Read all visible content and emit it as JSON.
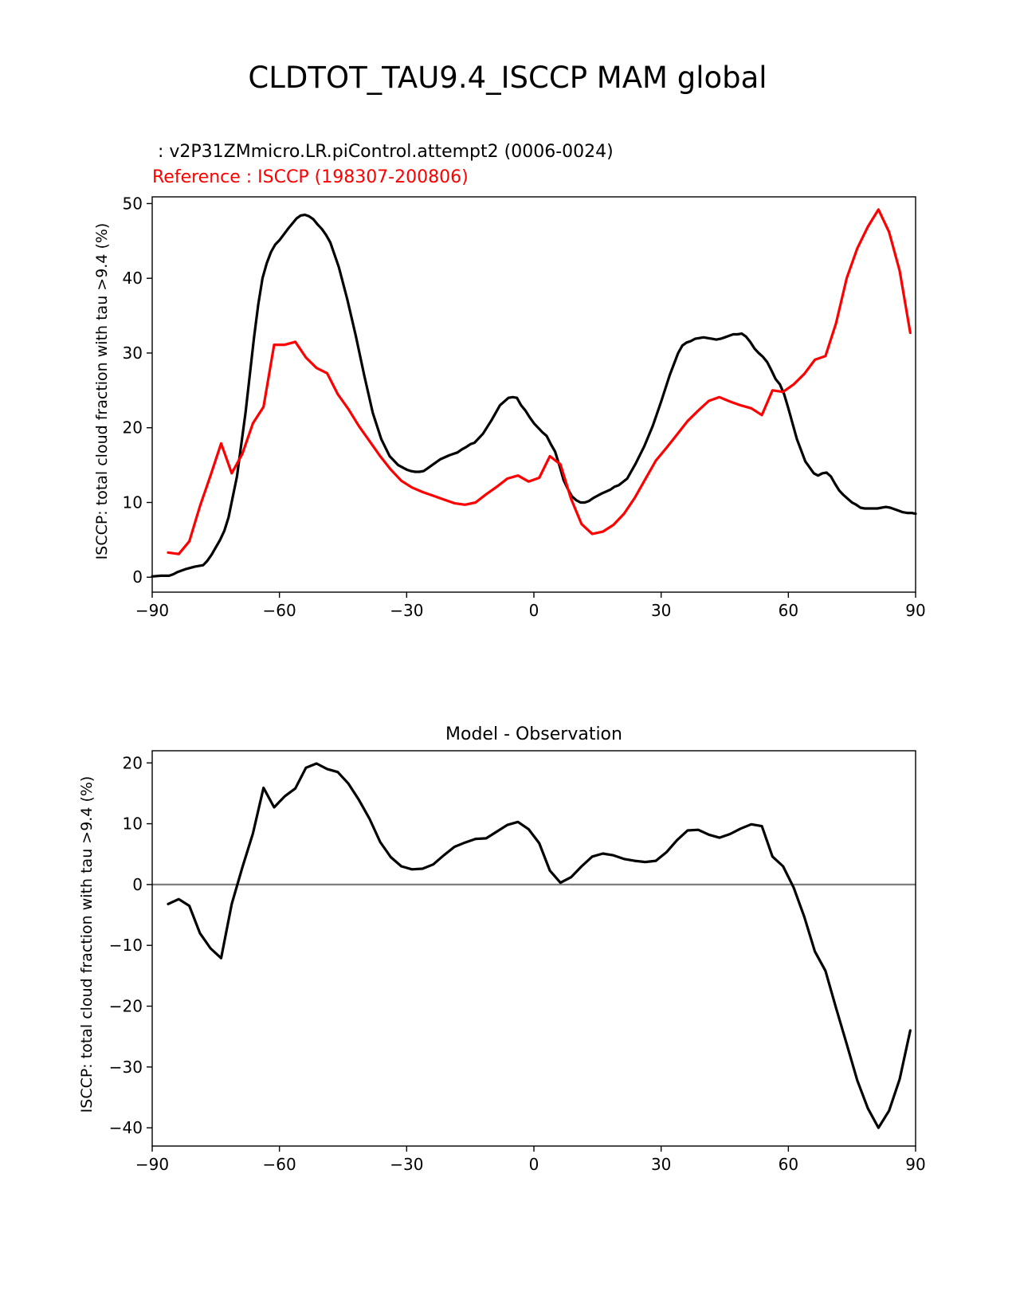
{
  "figure": {
    "title": "CLDTOT_TAU9.4_ISCCP MAM global"
  },
  "chart_data": [
    {
      "type": "line",
      "test_label": " : v2P31ZMmicro.LR.piControl.attempt2 (0006-0024)",
      "reference_label": "Reference : ISCCP (198307-200806)",
      "ylabel": "ISCCP: total cloud fraction with tau >9.4 (%)",
      "xlim": [
        -90,
        90
      ],
      "ylim": [
        -2,
        50.9
      ],
      "xticks": [
        -90,
        -60,
        -30,
        0,
        30,
        60,
        90
      ],
      "xtick_labels": [
        "−90",
        "−60",
        "−30",
        "0",
        "30",
        "60",
        "90"
      ],
      "yticks": [
        0,
        10,
        20,
        30,
        40,
        50
      ],
      "ytick_labels": [
        "0",
        "10",
        "20",
        "30",
        "40",
        "50"
      ],
      "series": [
        {
          "name": "v2P31ZMmicro.LR.piControl.attempt2 (0006-0024)",
          "color": "#000000",
          "x": [
            -90,
            -88,
            -86,
            -85,
            -84,
            -82,
            -80,
            -78,
            -77,
            -76,
            -74,
            -73,
            -72,
            -70,
            -68,
            -66,
            -65,
            -64,
            -63,
            -62,
            -61,
            -60,
            -58,
            -56,
            -55,
            -54,
            -53,
            -52,
            -51,
            -50,
            -49,
            -48,
            -46,
            -44,
            -42,
            -40,
            -38,
            -36,
            -34,
            -32,
            -30,
            -29,
            -28,
            -27,
            -26,
            -25,
            -24,
            -22,
            -20,
            -19,
            -18,
            -17,
            -16,
            -15,
            -14,
            -12,
            -10,
            -8,
            -6,
            -5,
            -4,
            -3,
            -2,
            -1,
            0,
            1,
            2,
            3,
            4,
            5,
            6,
            7,
            8,
            9,
            10,
            11,
            12,
            13,
            14,
            16,
            18,
            19,
            20,
            22,
            24,
            26,
            28,
            30,
            32,
            34,
            35,
            36,
            37,
            38,
            39,
            40,
            41,
            42,
            43,
            44,
            45,
            46,
            47,
            48,
            49,
            50,
            51,
            52,
            53,
            54,
            55,
            56,
            57,
            58,
            59,
            60,
            62,
            64,
            66,
            67,
            68,
            69,
            70,
            71,
            72,
            73,
            74,
            75,
            76,
            77,
            78,
            79,
            80,
            81,
            82,
            83,
            84,
            85,
            86,
            87,
            88,
            89,
            90
          ],
          "y": [
            0.1,
            0.2,
            0.2,
            0.4,
            0.7,
            1.1,
            1.4,
            1.6,
            2.2,
            3.0,
            5.0,
            6.2,
            8.0,
            13.5,
            22.0,
            32.0,
            36.5,
            40.0,
            42.0,
            43.5,
            44.5,
            45.1,
            46.6,
            48.0,
            48.4,
            48.5,
            48.3,
            47.9,
            47.2,
            46.6,
            45.8,
            44.8,
            41.5,
            37.2,
            32.3,
            27.0,
            22.0,
            18.5,
            16.2,
            15.0,
            14.4,
            14.2,
            14.1,
            14.1,
            14.2,
            14.6,
            15.0,
            15.8,
            16.3,
            16.5,
            16.7,
            17.1,
            17.4,
            17.8,
            18.0,
            19.2,
            21.0,
            23.0,
            24.0,
            24.1,
            24.0,
            23.0,
            22.3,
            21.4,
            20.6,
            20.0,
            19.4,
            18.9,
            17.8,
            16.8,
            15.0,
            13.0,
            11.8,
            10.8,
            10.3,
            10.0,
            10.0,
            10.2,
            10.6,
            11.2,
            11.7,
            12.1,
            12.3,
            13.2,
            15.2,
            17.5,
            20.2,
            23.5,
            27.0,
            30.0,
            31.0,
            31.4,
            31.6,
            31.9,
            32.0,
            32.1,
            32.0,
            31.9,
            31.8,
            31.9,
            32.1,
            32.3,
            32.5,
            32.5,
            32.6,
            32.2,
            31.5,
            30.6,
            30.0,
            29.5,
            28.8,
            27.7,
            26.5,
            25.8,
            24.5,
            22.6,
            18.5,
            15.5,
            13.9,
            13.6,
            13.9,
            14.0,
            13.5,
            12.5,
            11.6,
            11.0,
            10.5,
            10.0,
            9.7,
            9.3,
            9.2,
            9.2,
            9.2,
            9.2,
            9.3,
            9.4,
            9.3,
            9.1,
            8.9,
            8.7,
            8.6,
            8.6,
            8.5
          ]
        },
        {
          "name": "Reference : ISCCP (198307-200806)",
          "color": "#ff0000",
          "x": [
            -86.25,
            -83.75,
            -81.25,
            -78.75,
            -76.25,
            -73.75,
            -71.25,
            -68.75,
            -66.25,
            -63.75,
            -61.25,
            -58.75,
            -56.25,
            -53.75,
            -51.25,
            -48.75,
            -46.25,
            -43.75,
            -41.25,
            -38.75,
            -36.25,
            -33.75,
            -31.25,
            -28.75,
            -26.25,
            -23.75,
            -21.25,
            -18.75,
            -16.25,
            -13.75,
            -11.25,
            -8.75,
            -6.25,
            -3.75,
            -1.25,
            1.25,
            3.75,
            6.25,
            8.75,
            11.25,
            13.75,
            16.25,
            18.75,
            21.25,
            23.75,
            26.25,
            28.75,
            31.25,
            33.75,
            36.25,
            38.75,
            41.25,
            43.75,
            46.25,
            48.75,
            51.25,
            53.75,
            56.25,
            58.75,
            61.25,
            63.75,
            66.25,
            68.75,
            71.25,
            73.75,
            76.25,
            78.75,
            81.25,
            83.75,
            86.25,
            88.75
          ],
          "y": [
            3.3,
            3.1,
            4.8,
            9.5,
            13.6,
            17.9,
            13.9,
            16.5,
            20.6,
            22.8,
            31.1,
            31.1,
            31.5,
            29.4,
            28.0,
            27.3,
            24.5,
            22.5,
            20.2,
            18.2,
            16.2,
            14.4,
            12.9,
            12.0,
            11.4,
            10.9,
            10.4,
            9.9,
            9.7,
            10.0,
            11.1,
            12.1,
            13.2,
            13.6,
            12.8,
            13.3,
            16.2,
            15.1,
            10.5,
            7.1,
            5.8,
            6.1,
            7.0,
            8.5,
            10.6,
            13.1,
            15.6,
            17.3,
            19.1,
            20.9,
            22.3,
            23.6,
            24.1,
            23.5,
            23.0,
            22.6,
            21.7,
            25.0,
            24.8,
            25.8,
            27.2,
            29.1,
            29.6,
            34.0,
            40.0,
            44.0,
            46.9,
            49.2,
            46.2,
            41.0,
            32.7
          ]
        }
      ]
    },
    {
      "type": "line",
      "title": "Model - Observation",
      "ylabel": "ISCCP: total cloud fraction with tau >9.4 (%)",
      "xlim": [
        -90,
        90
      ],
      "ylim": [
        -43,
        22
      ],
      "xticks": [
        -90,
        -60,
        -30,
        0,
        30,
        60,
        90
      ],
      "xtick_labels": [
        "−90",
        "−60",
        "−30",
        "0",
        "30",
        "60",
        "90"
      ],
      "yticks": [
        -40,
        -30,
        -20,
        -10,
        0,
        10,
        20
      ],
      "ytick_labels": [
        "−40",
        "−30",
        "−20",
        "−10",
        "0",
        "10",
        "20"
      ],
      "zero_line_color": "#808080",
      "series": [
        {
          "name": "",
          "color": "#000000",
          "x": [
            -86.25,
            -83.75,
            -81.25,
            -78.75,
            -76.25,
            -73.75,
            -71.25,
            -68.75,
            -66.25,
            -63.75,
            -61.25,
            -58.75,
            -56.25,
            -53.75,
            -51.25,
            -48.75,
            -46.25,
            -43.75,
            -41.25,
            -38.75,
            -36.25,
            -33.75,
            -31.25,
            -28.75,
            -26.25,
            -23.75,
            -21.25,
            -18.75,
            -16.25,
            -13.75,
            -11.25,
            -8.75,
            -6.25,
            -3.75,
            -1.25,
            1.25,
            3.75,
            6.25,
            8.75,
            11.25,
            13.75,
            16.25,
            18.75,
            21.25,
            23.75,
            26.25,
            28.75,
            31.25,
            33.75,
            36.25,
            38.75,
            41.25,
            43.75,
            46.25,
            48.75,
            51.25,
            53.75,
            56.25,
            58.75,
            61.25,
            63.75,
            66.25,
            68.75,
            71.25,
            73.75,
            76.25,
            78.75,
            81.25,
            83.75,
            86.25,
            88.75
          ],
          "y": [
            -3.2,
            -2.4,
            -3.5,
            -8.0,
            -10.5,
            -12.1,
            -3.2,
            2.8,
            8.4,
            15.9,
            12.7,
            14.5,
            15.8,
            19.2,
            19.9,
            19.0,
            18.5,
            16.6,
            13.9,
            10.8,
            7.0,
            4.5,
            3.0,
            2.5,
            2.6,
            3.3,
            4.8,
            6.2,
            6.9,
            7.5,
            7.6,
            8.7,
            9.8,
            10.3,
            9.1,
            6.8,
            2.3,
            0.3,
            1.2,
            3.0,
            4.6,
            5.1,
            4.8,
            4.2,
            3.9,
            3.7,
            3.9,
            5.3,
            7.3,
            8.9,
            9.0,
            8.2,
            7.7,
            8.3,
            9.2,
            9.9,
            9.6,
            4.6,
            3.0,
            -0.5,
            -5.3,
            -11.0,
            -14.2,
            -20.3,
            -26.2,
            -32.2,
            -36.8,
            -40.0,
            -37.2,
            -32.0,
            -24.0
          ]
        }
      ]
    }
  ]
}
